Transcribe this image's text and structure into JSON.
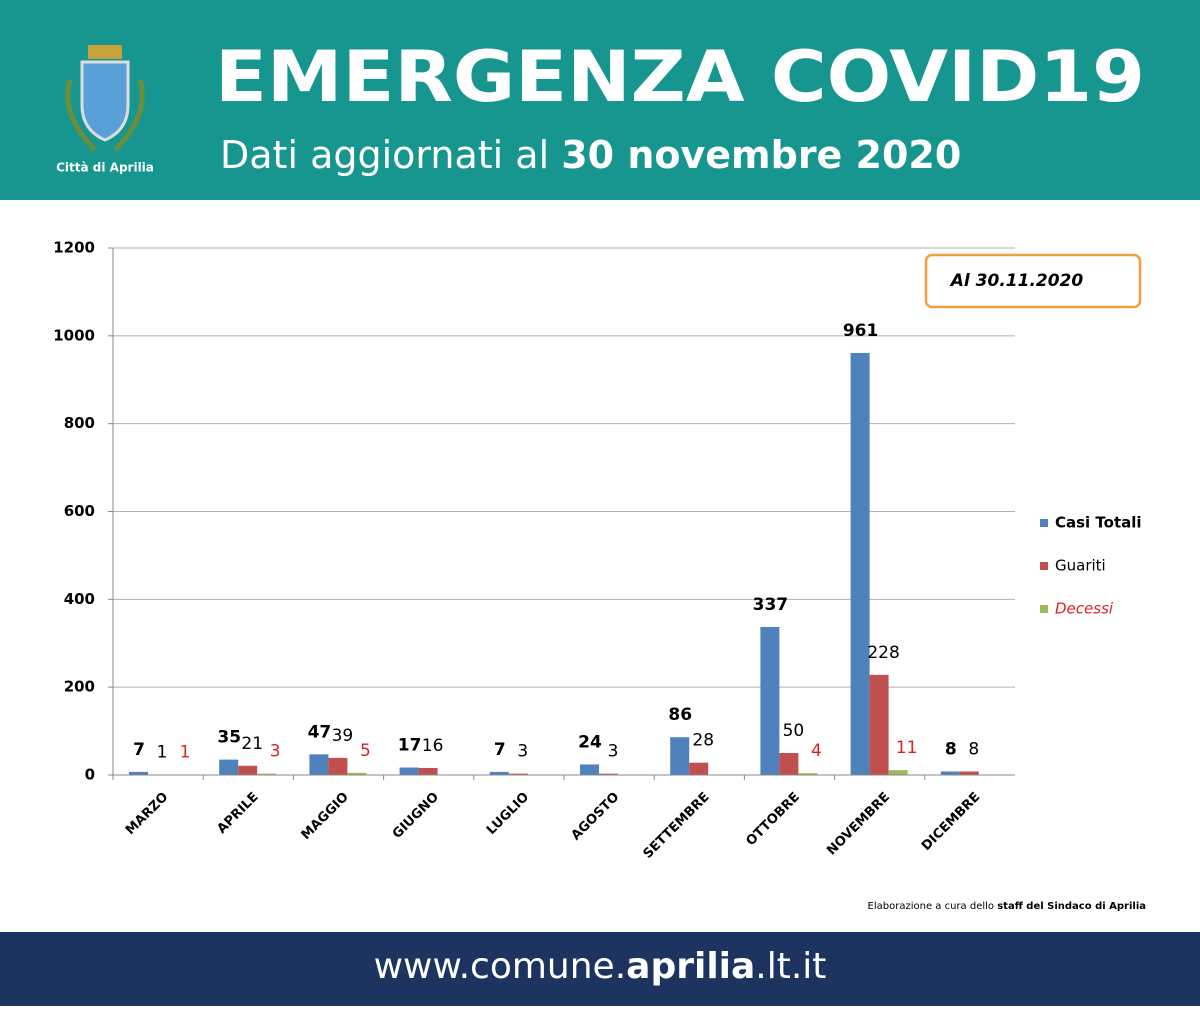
{
  "header": {
    "logo_text": "Città di Aprilia",
    "title": "EMERGENZA COVID19",
    "subtitle": [
      "Dati aggiornati al ",
      "30 novembre 2020"
    ]
  },
  "chart_data": {
    "type": "bar",
    "categories": [
      "MARZO",
      "APRILE",
      "MAGGIO",
      "GIUGNO",
      "LUGLIO",
      "AGOSTO",
      "SETTEMBRE",
      "OTTOBRE",
      "NOVEMBRE",
      "DICEMBRE"
    ],
    "series": [
      {
        "name": "Casi Totali",
        "color": "#4f81bd",
        "values": [
          7,
          35,
          47,
          17,
          7,
          24,
          86,
          337,
          961,
          8
        ]
      },
      {
        "name": "Guariti",
        "color": "#c0504d",
        "values": [
          1,
          21,
          39,
          16,
          3,
          3,
          28,
          50,
          228,
          8
        ]
      },
      {
        "name": "Decessi",
        "color": "#9bbb59",
        "values": [
          1,
          3,
          5,
          null,
          null,
          null,
          null,
          4,
          11,
          null
        ]
      }
    ],
    "ylim": [
      0,
      1200
    ],
    "yticks": [
      0,
      200,
      400,
      600,
      800,
      1000,
      1200
    ],
    "grid": true,
    "annotation": "Al 30.11.2020",
    "credit": [
      "Elaborazione a cura dello ",
      "staff del Sindaco di Aprilia"
    ]
  },
  "footer": {
    "url": [
      "www.comune.",
      "aprilia",
      ".lt.it"
    ]
  }
}
